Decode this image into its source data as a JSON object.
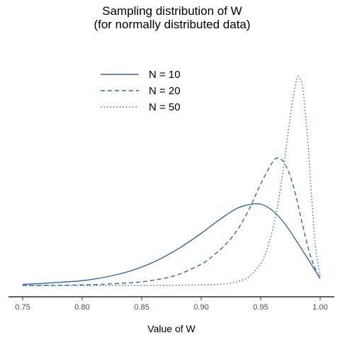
{
  "chart_data": {
    "type": "line",
    "title_line1": "Sampling distribution of W",
    "title_line2": "(for normally distributed data)",
    "xlabel": "Value of W",
    "ylabel": "",
    "xlim": [
      0.75,
      1.0
    ],
    "ylim": [
      0,
      40
    ],
    "x_ticks": [
      0.75,
      0.8,
      0.85,
      0.9,
      0.95,
      1.0
    ],
    "x_tick_labels": [
      "0.75",
      "0.80",
      "0.85",
      "0.90",
      "0.95",
      "1.00"
    ],
    "show_y_axis": false,
    "grid": false,
    "legend_position": "top-left",
    "color": "#36689f",
    "series": [
      {
        "name": "N = 10",
        "linestyle": "solid",
        "x": [
          0.75,
          0.775,
          0.8,
          0.82,
          0.84,
          0.86,
          0.88,
          0.9,
          0.91,
          0.92,
          0.93,
          0.94,
          0.95,
          0.96,
          0.97,
          0.98,
          0.99,
          1.0
        ],
        "y": [
          0.2,
          0.5,
          0.9,
          1.6,
          2.7,
          4.4,
          6.8,
          9.8,
          11.5,
          13.1,
          14.5,
          15.2,
          15.3,
          14.1,
          11.7,
          8.4,
          4.9,
          1.3
        ]
      },
      {
        "name": "N = 20",
        "linestyle": "dashed",
        "x": [
          0.75,
          0.8,
          0.84,
          0.86,
          0.88,
          0.9,
          0.91,
          0.92,
          0.93,
          0.94,
          0.95,
          0.96,
          0.965,
          0.97,
          0.975,
          0.98,
          0.985,
          0.99,
          0.995,
          1.0
        ],
        "y": [
          0.0,
          0.1,
          0.5,
          1.0,
          2.0,
          4.0,
          5.6,
          7.6,
          10.3,
          14.2,
          19.1,
          23.2,
          24.0,
          23.0,
          20.5,
          16.5,
          11.6,
          7.0,
          3.6,
          1.2
        ]
      },
      {
        "name": "N = 50",
        "linestyle": "dotted",
        "x": [
          0.75,
          0.85,
          0.9,
          0.92,
          0.93,
          0.94,
          0.95,
          0.955,
          0.96,
          0.965,
          0.97,
          0.975,
          0.98,
          0.983,
          0.986,
          0.99,
          0.993,
          0.996,
          1.0
        ],
        "y": [
          0.0,
          0.0,
          0.1,
          0.3,
          0.7,
          1.6,
          4.1,
          6.6,
          10.5,
          16.0,
          23.5,
          32.0,
          38.5,
          39.0,
          36.0,
          26.0,
          16.0,
          7.5,
          1.5
        ]
      }
    ]
  }
}
